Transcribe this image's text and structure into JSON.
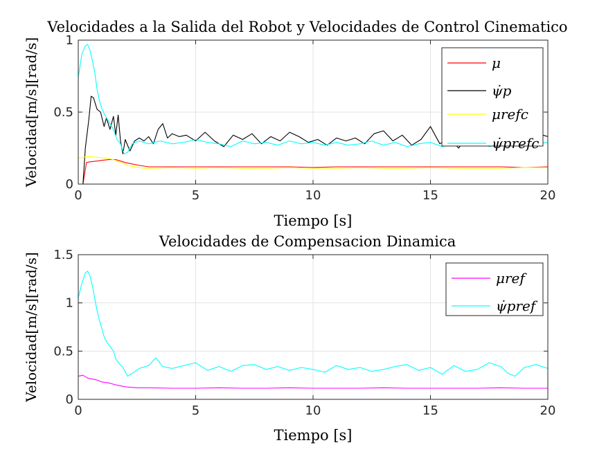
{
  "chart_data": [
    {
      "type": "line",
      "title": "Velocidades a la Salida del Robot y Velocidades de Control Cinematico",
      "xlabel": "Tiempo [s]",
      "ylabel": "Velocidad[m/s][rad/s]",
      "xlim": [
        0,
        20
      ],
      "ylim": [
        0,
        1
      ],
      "xticks": [
        0,
        5,
        10,
        15,
        20
      ],
      "yticks": [
        0,
        0.5,
        1
      ],
      "xtick_labels": [
        "0",
        "5",
        "10",
        "15",
        "20"
      ],
      "ytick_labels": [
        "0",
        "0.5",
        "1"
      ],
      "grid": true,
      "legend_position": "top-right",
      "series": [
        {
          "name": "μ",
          "color": "#ff0000",
          "x": [
            0,
            0.2,
            0.35,
            0.5,
            0.8,
            1.0,
            1.3,
            1.6,
            1.8,
            2.0,
            2.3,
            2.6,
            3.0,
            4,
            5,
            6,
            7,
            8,
            9,
            10,
            11,
            12,
            13,
            14,
            15,
            16,
            17,
            18,
            19,
            20
          ],
          "values": [
            0,
            0.0,
            0.15,
            0.155,
            0.16,
            0.165,
            0.17,
            0.17,
            0.16,
            0.15,
            0.14,
            0.13,
            0.12,
            0.12,
            0.12,
            0.12,
            0.12,
            0.12,
            0.12,
            0.115,
            0.12,
            0.12,
            0.12,
            0.12,
            0.12,
            0.12,
            0.12,
            0.12,
            0.115,
            0.12
          ]
        },
        {
          "name": "ψ̇p",
          "color": "#000000",
          "x": [
            0,
            0.2,
            0.3,
            0.45,
            0.55,
            0.65,
            0.8,
            0.95,
            1.1,
            1.2,
            1.35,
            1.5,
            1.6,
            1.7,
            1.8,
            1.9,
            2.0,
            2.2,
            2.4,
            2.6,
            2.8,
            3.0,
            3.2,
            3.4,
            3.6,
            3.8,
            4.0,
            4.3,
            4.6,
            5.0,
            5.4,
            5.8,
            6.2,
            6.6,
            7.0,
            7.4,
            7.8,
            8.2,
            8.6,
            9.0,
            9.4,
            9.8,
            10.2,
            10.6,
            11.0,
            11.4,
            11.8,
            12.2,
            12.6,
            13.0,
            13.4,
            13.8,
            14.2,
            14.6,
            15.0,
            15.4,
            15.8,
            16.2,
            16.6,
            17.0,
            17.4,
            17.8,
            18.2,
            18.6,
            19.0,
            19.4,
            19.8,
            20.0
          ],
          "values": [
            0.0,
            0.0,
            0.25,
            0.45,
            0.61,
            0.6,
            0.52,
            0.5,
            0.4,
            0.46,
            0.38,
            0.47,
            0.34,
            0.48,
            0.3,
            0.21,
            0.31,
            0.23,
            0.3,
            0.32,
            0.3,
            0.33,
            0.28,
            0.38,
            0.42,
            0.32,
            0.35,
            0.33,
            0.34,
            0.3,
            0.36,
            0.3,
            0.26,
            0.34,
            0.31,
            0.35,
            0.28,
            0.33,
            0.3,
            0.36,
            0.33,
            0.29,
            0.31,
            0.27,
            0.32,
            0.3,
            0.32,
            0.28,
            0.35,
            0.37,
            0.3,
            0.34,
            0.27,
            0.31,
            0.4,
            0.28,
            0.32,
            0.25,
            0.33,
            0.3,
            0.29,
            0.31,
            0.26,
            0.32,
            0.27,
            0.3,
            0.34,
            0.33
          ]
        },
        {
          "name": "μrefc",
          "color": "#ffff00",
          "x": [
            0,
            0.3,
            0.6,
            0.9,
            1.2,
            1.5,
            1.8,
            2.1,
            2.4,
            2.8,
            3.2,
            4,
            5,
            6,
            7,
            8,
            9,
            10,
            11,
            12,
            13,
            14,
            15,
            16,
            17,
            18,
            19,
            20
          ],
          "values": [
            0.18,
            0.19,
            0.19,
            0.185,
            0.18,
            0.17,
            0.15,
            0.13,
            0.12,
            0.11,
            0.11,
            0.115,
            0.11,
            0.115,
            0.11,
            0.11,
            0.115,
            0.11,
            0.11,
            0.115,
            0.11,
            0.11,
            0.115,
            0.11,
            0.11,
            0.11,
            0.115,
            0.115
          ]
        },
        {
          "name": "ψ̇prefc",
          "color": "#00ffff",
          "x": [
            0,
            0.15,
            0.3,
            0.4,
            0.5,
            0.6,
            0.7,
            0.8,
            0.9,
            1.0,
            1.1,
            1.2,
            1.35,
            1.5,
            1.65,
            1.8,
            1.95,
            2.1,
            2.3,
            2.6,
            3.0,
            3.5,
            4.0,
            4.5,
            5.0,
            5.5,
            6.0,
            6.5,
            7.0,
            7.5,
            8.0,
            8.5,
            9.0,
            9.5,
            10.0,
            10.5,
            11.0,
            11.5,
            12.0,
            12.5,
            13.0,
            13.5,
            14.0,
            14.5,
            15.0,
            15.5,
            16.0,
            16.5,
            17.0,
            17.5,
            18.0,
            18.5,
            19.0,
            19.5,
            20.0
          ],
          "values": [
            0.74,
            0.9,
            0.96,
            0.97,
            0.93,
            0.86,
            0.78,
            0.66,
            0.58,
            0.53,
            0.49,
            0.46,
            0.42,
            0.38,
            0.31,
            0.28,
            0.21,
            0.22,
            0.28,
            0.3,
            0.28,
            0.3,
            0.28,
            0.29,
            0.31,
            0.29,
            0.28,
            0.26,
            0.3,
            0.28,
            0.29,
            0.27,
            0.3,
            0.28,
            0.29,
            0.27,
            0.29,
            0.27,
            0.28,
            0.3,
            0.27,
            0.29,
            0.26,
            0.28,
            0.29,
            0.26,
            0.28,
            0.27,
            0.29,
            0.26,
            0.28,
            0.27,
            0.29,
            0.28,
            0.29
          ]
        }
      ]
    },
    {
      "type": "line",
      "title": "Velocidades de Compensacion Dinamica",
      "xlabel": "Tiempo [s]",
      "ylabel": "Velocidad[m/s][rad/s]",
      "xlim": [
        0,
        20
      ],
      "ylim": [
        0,
        1.5
      ],
      "xticks": [
        0,
        5,
        10,
        15,
        20
      ],
      "yticks": [
        0,
        0.5,
        1,
        1.5
      ],
      "xtick_labels": [
        "0",
        "5",
        "10",
        "15",
        "20"
      ],
      "ytick_labels": [
        "0",
        "0.5",
        "1",
        "1.5"
      ],
      "grid": true,
      "legend_position": "top-right",
      "series": [
        {
          "name": "μref",
          "color": "#ff00ff",
          "x": [
            0,
            0.2,
            0.4,
            0.6,
            0.8,
            1.0,
            1.3,
            1.6,
            2.0,
            2.5,
            3.0,
            4,
            5,
            6,
            7,
            8,
            9,
            10,
            11,
            12,
            13,
            14,
            15,
            16,
            17,
            18,
            19,
            20
          ],
          "values": [
            0.24,
            0.25,
            0.22,
            0.21,
            0.2,
            0.18,
            0.17,
            0.15,
            0.13,
            0.12,
            0.12,
            0.115,
            0.115,
            0.12,
            0.115,
            0.115,
            0.12,
            0.115,
            0.115,
            0.115,
            0.12,
            0.115,
            0.115,
            0.115,
            0.115,
            0.12,
            0.115,
            0.115
          ]
        },
        {
          "name": "ψ̇pref",
          "color": "#00ffff",
          "x": [
            0,
            0.15,
            0.3,
            0.4,
            0.5,
            0.6,
            0.7,
            0.8,
            0.9,
            1.0,
            1.1,
            1.2,
            1.35,
            1.5,
            1.6,
            1.75,
            1.9,
            2.1,
            2.3,
            2.6,
            3.0,
            3.3,
            3.6,
            4.0,
            4.5,
            5.0,
            5.5,
            6.0,
            6.5,
            7.0,
            7.5,
            8.0,
            8.5,
            9.0,
            9.5,
            10.0,
            10.5,
            11.0,
            11.5,
            12.0,
            12.5,
            13.0,
            13.5,
            14.0,
            14.5,
            15.0,
            15.5,
            16.0,
            16.5,
            17.0,
            17.5,
            18.0,
            18.3,
            18.6,
            19.0,
            19.5,
            20.0
          ],
          "values": [
            1.05,
            1.2,
            1.31,
            1.33,
            1.28,
            1.18,
            1.05,
            0.92,
            0.82,
            0.74,
            0.65,
            0.6,
            0.55,
            0.5,
            0.42,
            0.37,
            0.33,
            0.24,
            0.27,
            0.32,
            0.35,
            0.43,
            0.34,
            0.32,
            0.35,
            0.38,
            0.3,
            0.34,
            0.29,
            0.35,
            0.36,
            0.31,
            0.34,
            0.3,
            0.33,
            0.31,
            0.28,
            0.35,
            0.31,
            0.33,
            0.29,
            0.31,
            0.34,
            0.36,
            0.3,
            0.33,
            0.26,
            0.35,
            0.29,
            0.31,
            0.38,
            0.34,
            0.27,
            0.24,
            0.33,
            0.36,
            0.32
          ]
        }
      ]
    }
  ]
}
